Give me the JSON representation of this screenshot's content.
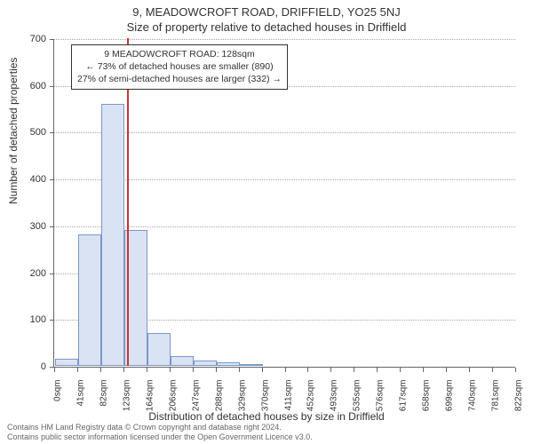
{
  "title_main": "9, MEADOWCROFT ROAD, DRIFFIELD, YO25 5NJ",
  "subtitle": "Size of property relative to detached houses in Driffield",
  "y_axis_label": "Number of detached properties",
  "x_axis_label": "Distribution of detached houses by size in Driffield",
  "footer_line1": "Contains HM Land Registry data © Crown copyright and database right 2024.",
  "footer_line2": "Contains public sector information licensed under the Open Government Licence v3.0.",
  "chart": {
    "type": "histogram",
    "background_color": "#ffffff",
    "grid_color": "#aaaaaa",
    "axis_color": "#666666",
    "bar_fill": "#d9e3f3",
    "bar_border": "#7a97c9",
    "marker_color": "#cc3333",
    "ylim": [
      0,
      700
    ],
    "yticks": [
      0,
      100,
      200,
      300,
      400,
      500,
      600,
      700
    ],
    "xticks": [
      "0sqm",
      "41sqm",
      "82sqm",
      "123sqm",
      "164sqm",
      "206sqm",
      "247sqm",
      "288sqm",
      "329sqm",
      "370sqm",
      "411sqm",
      "452sqm",
      "493sqm",
      "535sqm",
      "576sqm",
      "617sqm",
      "658sqm",
      "699sqm",
      "740sqm",
      "781sqm",
      "822sqm"
    ],
    "bars": [
      15,
      280,
      560,
      290,
      70,
      20,
      12,
      8,
      4,
      0,
      0,
      0,
      0,
      0,
      0,
      0,
      0,
      0,
      0,
      0
    ],
    "marker_bin_index": 3,
    "label_fontsize": 12,
    "tick_fontsize": 11
  },
  "annotation": {
    "line1": "9 MEADOWCROFT ROAD: 128sqm",
    "line2": "← 73% of detached houses are smaller (890)",
    "line3": "27% of semi-detached houses are larger (332) →"
  }
}
